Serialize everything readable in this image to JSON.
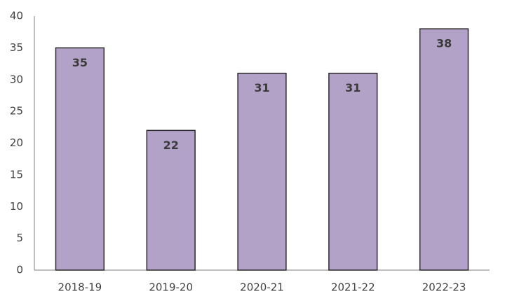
{
  "chart_data": {
    "type": "bar",
    "categories": [
      "2018-19",
      "2019-20",
      "2020-21",
      "2021-22",
      "2022-23"
    ],
    "values": [
      35,
      22,
      31,
      31,
      38
    ],
    "color": "#b3a2c8",
    "ylim": [
      0,
      40
    ],
    "yticks": [
      0,
      5,
      10,
      15,
      20,
      25,
      30,
      35,
      40
    ],
    "grid": false
  }
}
